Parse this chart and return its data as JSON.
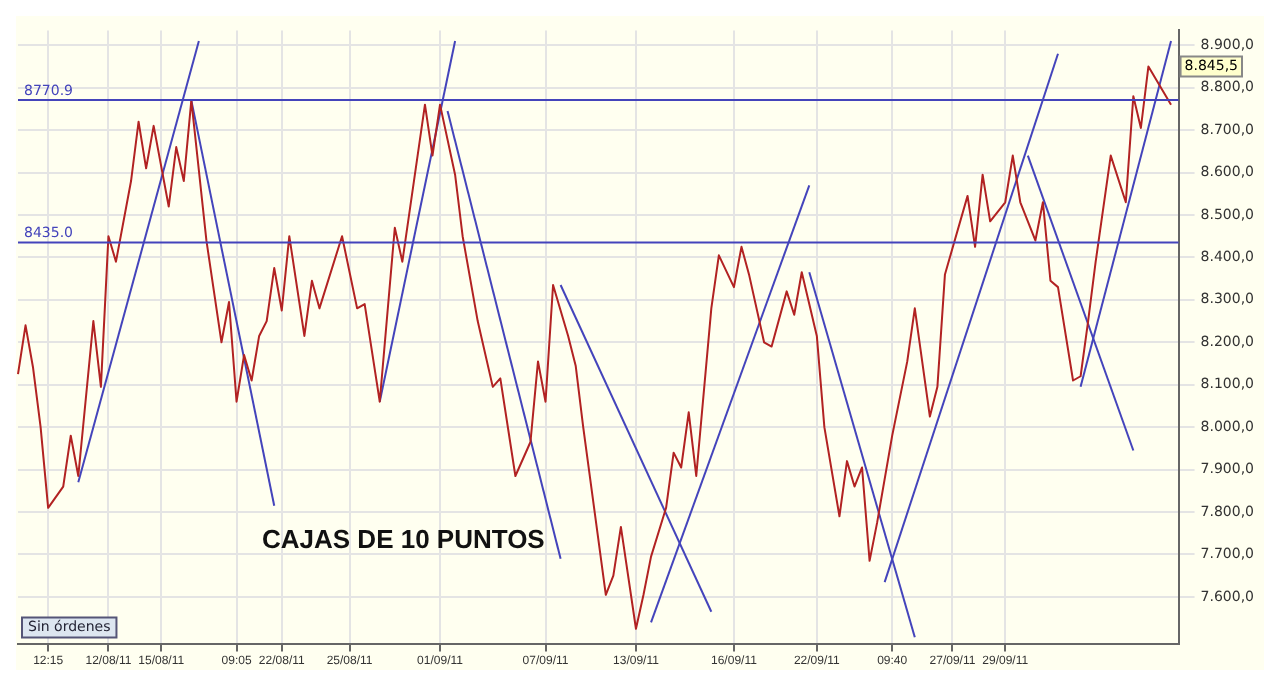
{
  "chart_data": {
    "type": "line",
    "annotations": [
      "CAJAS DE 10 PUNTOS",
      "Sin órdenes",
      "8.845,5"
    ],
    "categories": [
      null,
      null,
      null,
      null,
      "12:15",
      null,
      null,
      null,
      null,
      null,
      null,
      null,
      "12/08/11",
      null,
      null,
      null,
      null,
      null,
      null,
      "15/08/11",
      null,
      null,
      null,
      null,
      null,
      null,
      null,
      null,
      null,
      "09:05",
      null,
      null,
      null,
      null,
      null,
      "22/08/11",
      null,
      null,
      null,
      null,
      null,
      null,
      null,
      null,
      "25/08/11",
      null,
      null,
      null,
      null,
      null,
      null,
      null,
      null,
      null,
      null,
      null,
      "01/09/11",
      null,
      null,
      null,
      null,
      null,
      null,
      null,
      null,
      null,
      null,
      null,
      null,
      null,
      "07/09/11",
      null,
      null,
      null,
      null,
      null,
      null,
      null,
      null,
      null,
      null,
      null,
      "13/09/11",
      null,
      null,
      null,
      null,
      null,
      null,
      null,
      null,
      null,
      null,
      null,
      null,
      "16/09/11",
      null,
      null,
      null,
      null,
      null,
      null,
      null,
      null,
      null,
      null,
      "22/09/11",
      null,
      null,
      null,
      null,
      null,
      null,
      null,
      null,
      null,
      "09:40",
      null,
      null,
      null,
      null,
      null,
      null,
      null,
      "27/09/11",
      null,
      null,
      null,
      null,
      null,
      null,
      "29/09/11",
      null,
      null,
      null,
      null,
      null,
      null,
      null,
      null,
      null,
      null,
      null,
      null,
      null,
      null,
      null,
      null,
      null,
      null,
      null,
      null,
      null,
      null,
      null
    ],
    "ylim": [
      7490,
      8935
    ],
    "yticks": [
      {
        "value": 7600,
        "label": "7.600,0"
      },
      {
        "value": 7700,
        "label": "7.700,0"
      },
      {
        "value": 7800,
        "label": "7.800,0"
      },
      {
        "value": 7900,
        "label": "7.900,0"
      },
      {
        "value": 8000,
        "label": "8.000,0"
      },
      {
        "value": 8100,
        "label": "8.100,0"
      },
      {
        "value": 8200,
        "label": "8.200,0"
      },
      {
        "value": 8300,
        "label": "8.300,0"
      },
      {
        "value": 8400,
        "label": "8.400,0"
      },
      {
        "value": 8500,
        "label": "8.500,0"
      },
      {
        "value": 8600,
        "label": "8.600,0"
      },
      {
        "value": 8700,
        "label": "8.700,0"
      },
      {
        "value": 8800,
        "label": "8.800,0"
      },
      {
        "value": 8900,
        "label": "8.900,0"
      }
    ],
    "grid": true,
    "legend": false,
    "marker": "none",
    "line_style": "solid",
    "ref_lines": [
      {
        "axis": "y",
        "value": 8770.9,
        "label": "8770.9",
        "color": "#4444bb"
      },
      {
        "axis": "y",
        "value": 8435.0,
        "label": "8435.0",
        "color": "#4444bb"
      }
    ],
    "series": [
      {
        "color": "#b22222",
        "values": [
          8125,
          8240,
          8140,
          8000,
          7810,
          null,
          7860,
          7980,
          7885,
          null,
          8250,
          8095,
          8450,
          8390,
          null,
          8580,
          8720,
          8610,
          8710,
          null,
          8520,
          8660,
          8580,
          8770,
          null,
          8440,
          null,
          8200,
          8295,
          8060,
          8170,
          8110,
          8215,
          8250,
          8375,
          8275,
          8450,
          null,
          8215,
          8345,
          8280,
          null,
          null,
          8450,
          null,
          8280,
          8290,
          null,
          8060,
          null,
          8470,
          8390,
          null,
          null,
          8760,
          8640,
          8760,
          null,
          8595,
          8450,
          null,
          8250,
          null,
          8095,
          8115,
          null,
          7885,
          null,
          7965,
          8155,
          8060,
          8335,
          null,
          8215,
          8145,
          8000,
          null,
          null,
          7605,
          7650,
          7765,
          null,
          7525,
          7605,
          7695,
          null,
          7810,
          7940,
          7905,
          8035,
          7885,
          null,
          8280,
          8405,
          null,
          8330,
          8425,
          8360,
          null,
          8200,
          8190,
          null,
          8320,
          8265,
          8365,
          null,
          8215,
          8000,
          null,
          7790,
          7920,
          7860,
          7905,
          7685,
          7775,
          null,
          7980,
          null,
          8155,
          8280,
          null,
          8025,
          8095,
          8360,
          null,
          null,
          8545,
          8425,
          8595,
          8485,
          null,
          8530,
          8640,
          8530,
          null,
          8440,
          8530,
          8345,
          8330,
          null,
          8110,
          8120,
          8250,
          8390,
          null,
          8640,
          null,
          8530,
          8780,
          8705,
          8850,
          null,
          null,
          8760,
          null
        ]
      },
      {
        "color": "#4444bb",
        "values": [
          null,
          null,
          null,
          null,
          null,
          null,
          null,
          null,
          7870,
          null,
          null,
          null,
          null,
          null,
          null,
          null,
          null,
          null,
          null,
          null,
          null,
          null,
          null,
          null,
          8910,
          null,
          null,
          null,
          null,
          null,
          null,
          null,
          null,
          null,
          null,
          null,
          null,
          null,
          null,
          null,
          null,
          null,
          null,
          null,
          null,
          null,
          null,
          null,
          null,
          null,
          null,
          null,
          null,
          null,
          null,
          null,
          null,
          null,
          null,
          null,
          null,
          null,
          null,
          null,
          null,
          null,
          null,
          null,
          null,
          null,
          null,
          null,
          null,
          null,
          null,
          null,
          null,
          null,
          null,
          null,
          null,
          null,
          null,
          null,
          null,
          null,
          null,
          null,
          null,
          null,
          null,
          null,
          null,
          null,
          null,
          null,
          null,
          null,
          null,
          null,
          null,
          null,
          null,
          null,
          null,
          null,
          null,
          null,
          null,
          null,
          null,
          null,
          null,
          null,
          null,
          null,
          null,
          null,
          null,
          null,
          null,
          null,
          null,
          null,
          null,
          null,
          null,
          null,
          null,
          null,
          null,
          null,
          null,
          null,
          null,
          null,
          null,
          null,
          null,
          null,
          null,
          null,
          null,
          null,
          null,
          null,
          null,
          null,
          null,
          null,
          null,
          null,
          null,
          null,
          null
        ]
      },
      {
        "color": "#4444bb",
        "values": [
          null,
          null,
          null,
          null,
          null,
          null,
          null,
          null,
          null,
          null,
          null,
          null,
          null,
          null,
          null,
          null,
          null,
          null,
          null,
          null,
          null,
          null,
          null,
          8770,
          null,
          null,
          null,
          null,
          null,
          null,
          null,
          null,
          null,
          null,
          7815,
          null,
          null,
          null,
          null,
          null,
          null,
          null,
          null,
          null,
          null,
          null,
          null,
          null,
          null,
          null,
          null,
          null,
          null,
          null,
          null,
          null,
          null,
          null,
          null,
          null,
          null,
          null,
          null,
          null,
          null,
          null,
          null,
          null,
          null,
          null,
          null,
          null,
          null,
          null,
          null,
          null,
          null,
          null,
          null,
          null,
          null,
          null,
          null,
          null,
          null,
          null,
          null,
          null,
          null,
          null,
          null,
          null,
          null,
          null,
          null,
          null,
          null,
          null,
          null,
          null,
          null,
          null,
          null,
          null,
          null,
          null,
          null,
          null,
          null,
          null,
          null,
          null,
          null,
          null,
          null,
          null,
          null,
          null,
          null,
          null,
          null,
          null,
          null,
          null,
          null,
          null,
          null,
          null,
          null,
          null,
          null,
          null,
          null,
          null,
          null,
          null,
          null,
          null,
          null,
          null,
          null,
          null,
          null,
          null,
          null,
          null,
          null,
          null,
          null,
          null,
          null,
          null,
          null,
          null,
          null
        ]
      },
      {
        "color": "#4444bb",
        "values": [
          null,
          null,
          null,
          null,
          null,
          null,
          null,
          null,
          null,
          null,
          null,
          null,
          null,
          null,
          null,
          null,
          null,
          null,
          null,
          null,
          null,
          null,
          null,
          null,
          null,
          null,
          null,
          null,
          null,
          null,
          null,
          null,
          null,
          null,
          null,
          null,
          null,
          null,
          null,
          null,
          null,
          null,
          null,
          null,
          null,
          null,
          null,
          null,
          8060,
          null,
          null,
          null,
          null,
          null,
          null,
          null,
          null,
          null,
          8910,
          null,
          null,
          null,
          null,
          null,
          null,
          null,
          null,
          null,
          null,
          null,
          null,
          null,
          null,
          null,
          null,
          null,
          null,
          null,
          null,
          null,
          null,
          null,
          null,
          null,
          null,
          null,
          null,
          null,
          null,
          null,
          null,
          null,
          null,
          null,
          null,
          null,
          null,
          null,
          null,
          null,
          null,
          null,
          null,
          null,
          null,
          null,
          null,
          null,
          null,
          null,
          null,
          null,
          null,
          null,
          null,
          null,
          null,
          null,
          null,
          null,
          null,
          null,
          null,
          null,
          null,
          null,
          null,
          null,
          null,
          null,
          null,
          null,
          null,
          null,
          null,
          null,
          null,
          null,
          null,
          null,
          null,
          null,
          null,
          null,
          null,
          null,
          null,
          null,
          null,
          null,
          null,
          null,
          null,
          null,
          null
        ]
      },
      {
        "color": "#4444bb",
        "values": [
          null,
          null,
          null,
          null,
          null,
          null,
          null,
          null,
          null,
          null,
          null,
          null,
          null,
          null,
          null,
          null,
          null,
          null,
          null,
          null,
          null,
          null,
          null,
          null,
          null,
          null,
          null,
          null,
          null,
          null,
          null,
          null,
          null,
          null,
          null,
          null,
          null,
          null,
          null,
          null,
          null,
          null,
          null,
          null,
          null,
          null,
          null,
          null,
          null,
          null,
          null,
          null,
          null,
          null,
          null,
          null,
          null,
          8745,
          null,
          null,
          null,
          null,
          null,
          null,
          null,
          null,
          null,
          null,
          null,
          null,
          null,
          null,
          7690,
          null,
          null,
          null,
          null,
          null,
          null,
          null,
          null,
          null,
          null,
          null,
          null,
          null,
          null,
          null,
          null,
          null,
          null,
          null,
          null,
          null,
          null,
          null,
          null,
          null,
          null,
          null,
          null,
          null,
          null,
          null,
          null,
          null,
          null,
          null,
          null,
          null,
          null,
          null,
          null,
          null,
          null,
          null,
          null,
          null,
          null,
          null,
          null,
          null,
          null,
          null,
          null,
          null,
          null,
          null,
          null,
          null,
          null,
          null,
          null,
          null,
          null,
          null,
          null,
          null,
          null,
          null,
          null,
          null,
          null,
          null,
          null,
          null,
          null,
          null,
          null,
          null,
          null,
          null,
          null,
          null,
          null
        ]
      },
      {
        "color": "#4444bb",
        "values": [
          null,
          null,
          null,
          null,
          null,
          null,
          null,
          null,
          null,
          null,
          null,
          null,
          null,
          null,
          null,
          null,
          null,
          null,
          null,
          null,
          null,
          null,
          null,
          null,
          null,
          null,
          null,
          null,
          null,
          null,
          null,
          null,
          null,
          null,
          null,
          null,
          null,
          null,
          null,
          null,
          null,
          null,
          null,
          null,
          null,
          null,
          null,
          null,
          null,
          null,
          null,
          null,
          null,
          null,
          null,
          null,
          null,
          null,
          null,
          null,
          null,
          null,
          null,
          null,
          null,
          null,
          null,
          null,
          null,
          null,
          null,
          null,
          8335,
          null,
          null,
          null,
          null,
          null,
          null,
          null,
          null,
          null,
          null,
          null,
          null,
          null,
          null,
          null,
          null,
          null,
          null,
          null,
          7565,
          null,
          null,
          null,
          null,
          null,
          null,
          null,
          null,
          null,
          null,
          null,
          null,
          null,
          null,
          null,
          null,
          null,
          null,
          null,
          null,
          null,
          null,
          null,
          null,
          null,
          null,
          null,
          null,
          null,
          null,
          null,
          null,
          null,
          null,
          null,
          null,
          null,
          null,
          null,
          null,
          null,
          null,
          null,
          null,
          null,
          null,
          null,
          null,
          null,
          null,
          null,
          null,
          null,
          null,
          null,
          null,
          null,
          null,
          null,
          null,
          null,
          null
        ]
      },
      {
        "color": "#4444bb",
        "values": [
          null,
          null,
          null,
          null,
          null,
          null,
          null,
          null,
          null,
          null,
          null,
          null,
          null,
          null,
          null,
          null,
          null,
          null,
          null,
          null,
          null,
          null,
          null,
          null,
          null,
          null,
          null,
          null,
          null,
          null,
          null,
          null,
          null,
          null,
          null,
          null,
          null,
          null,
          null,
          null,
          null,
          null,
          null,
          null,
          null,
          null,
          null,
          null,
          null,
          null,
          null,
          null,
          null,
          null,
          null,
          null,
          null,
          null,
          null,
          null,
          null,
          null,
          null,
          null,
          null,
          null,
          null,
          null,
          null,
          null,
          null,
          null,
          null,
          null,
          null,
          null,
          null,
          null,
          null,
          null,
          null,
          null,
          null,
          null,
          7540,
          null,
          null,
          null,
          null,
          null,
          null,
          null,
          null,
          null,
          null,
          null,
          null,
          null,
          null,
          null,
          null,
          null,
          null,
          null,
          null,
          8570,
          null,
          null,
          null,
          null,
          null,
          null,
          null,
          null,
          null,
          null,
          null,
          null,
          null,
          null,
          null,
          null,
          null,
          null,
          null,
          null,
          null,
          null,
          null,
          null,
          null,
          null,
          null,
          null,
          null,
          null,
          null,
          null,
          null,
          null,
          null,
          null,
          null,
          null,
          null,
          null,
          null,
          null,
          null,
          null,
          null,
          null,
          null,
          null,
          null
        ]
      },
      {
        "color": "#4444bb",
        "values": [
          null,
          null,
          null,
          null,
          null,
          null,
          null,
          null,
          null,
          null,
          null,
          null,
          null,
          null,
          null,
          null,
          null,
          null,
          null,
          null,
          null,
          null,
          null,
          null,
          null,
          null,
          null,
          null,
          null,
          null,
          null,
          null,
          null,
          null,
          null,
          null,
          null,
          null,
          null,
          null,
          null,
          null,
          null,
          null,
          null,
          null,
          null,
          null,
          null,
          null,
          null,
          null,
          null,
          null,
          null,
          null,
          null,
          null,
          null,
          null,
          null,
          null,
          null,
          null,
          null,
          null,
          null,
          null,
          null,
          null,
          null,
          null,
          null,
          null,
          null,
          null,
          null,
          null,
          null,
          null,
          null,
          null,
          null,
          null,
          null,
          null,
          null,
          null,
          null,
          null,
          null,
          null,
          null,
          null,
          null,
          null,
          null,
          null,
          null,
          null,
          null,
          null,
          null,
          null,
          null,
          8365,
          null,
          null,
          null,
          null,
          null,
          null,
          null,
          null,
          null,
          null,
          null,
          null,
          null,
          7505,
          null,
          null,
          null,
          null,
          null,
          null,
          null,
          null,
          null,
          null,
          null,
          null,
          null,
          null,
          null,
          null,
          null,
          null,
          null,
          null,
          null,
          null,
          null,
          null,
          null,
          null,
          null,
          null,
          null,
          null,
          null,
          null,
          null,
          null,
          null
        ]
      },
      {
        "color": "#4444bb",
        "values": [
          null,
          null,
          null,
          null,
          null,
          null,
          null,
          null,
          null,
          null,
          null,
          null,
          null,
          null,
          null,
          null,
          null,
          null,
          null,
          null,
          null,
          null,
          null,
          null,
          null,
          null,
          null,
          null,
          null,
          null,
          null,
          null,
          null,
          null,
          null,
          null,
          null,
          null,
          null,
          null,
          null,
          null,
          null,
          null,
          null,
          null,
          null,
          null,
          null,
          null,
          null,
          null,
          null,
          null,
          null,
          null,
          null,
          null,
          null,
          null,
          null,
          null,
          null,
          null,
          null,
          null,
          null,
          null,
          null,
          null,
          null,
          null,
          null,
          null,
          null,
          null,
          null,
          null,
          null,
          null,
          null,
          null,
          null,
          null,
          null,
          null,
          null,
          null,
          null,
          null,
          null,
          null,
          null,
          null,
          null,
          null,
          null,
          null,
          null,
          null,
          null,
          null,
          null,
          null,
          null,
          null,
          null,
          null,
          null,
          null,
          null,
          null,
          null,
          null,
          null,
          7635,
          null,
          null,
          null,
          null,
          null,
          null,
          null,
          null,
          null,
          null,
          null,
          null,
          null,
          null,
          null,
          null,
          null,
          null,
          null,
          null,
          null,
          null,
          8880,
          null,
          null,
          null,
          null,
          null,
          null,
          null,
          null,
          null,
          null,
          null,
          null,
          null,
          null,
          null,
          null
        ]
      },
      {
        "color": "#4444bb",
        "values": [
          null,
          null,
          null,
          null,
          null,
          null,
          null,
          null,
          null,
          null,
          null,
          null,
          null,
          null,
          null,
          null,
          null,
          null,
          null,
          null,
          null,
          null,
          null,
          null,
          null,
          null,
          null,
          null,
          null,
          null,
          null,
          null,
          null,
          null,
          null,
          null,
          null,
          null,
          null,
          null,
          null,
          null,
          null,
          null,
          null,
          null,
          null,
          null,
          null,
          null,
          null,
          null,
          null,
          null,
          null,
          null,
          null,
          null,
          null,
          null,
          null,
          null,
          null,
          null,
          null,
          null,
          null,
          null,
          null,
          null,
          null,
          null,
          null,
          null,
          null,
          null,
          null,
          null,
          null,
          null,
          null,
          null,
          null,
          null,
          null,
          null,
          null,
          null,
          null,
          null,
          null,
          null,
          null,
          null,
          null,
          null,
          null,
          null,
          null,
          null,
          null,
          null,
          null,
          null,
          null,
          null,
          null,
          null,
          null,
          null,
          null,
          null,
          null,
          null,
          null,
          null,
          null,
          null,
          null,
          null,
          null,
          null,
          null,
          null,
          null,
          null,
          null,
          null,
          null,
          null,
          null,
          null,
          null,
          null,
          8640,
          null,
          null,
          null,
          null,
          null,
          null,
          null,
          null,
          null,
          null,
          null,
          null,
          null,
          7945,
          null,
          null,
          null,
          null,
          null,
          null
        ]
      },
      {
        "color": "#4444bb",
        "values": [
          null,
          null,
          null,
          null,
          null,
          null,
          null,
          null,
          null,
          null,
          null,
          null,
          null,
          null,
          null,
          null,
          null,
          null,
          null,
          null,
          null,
          null,
          null,
          null,
          null,
          null,
          null,
          null,
          null,
          null,
          null,
          null,
          null,
          null,
          null,
          null,
          null,
          null,
          null,
          null,
          null,
          null,
          null,
          null,
          null,
          null,
          null,
          null,
          null,
          null,
          null,
          null,
          null,
          null,
          null,
          null,
          null,
          null,
          null,
          null,
          null,
          null,
          null,
          null,
          null,
          null,
          null,
          null,
          null,
          null,
          null,
          null,
          null,
          null,
          null,
          null,
          null,
          null,
          null,
          null,
          null,
          null,
          null,
          null,
          null,
          null,
          null,
          null,
          null,
          null,
          null,
          null,
          null,
          null,
          null,
          null,
          null,
          null,
          null,
          null,
          null,
          null,
          null,
          null,
          null,
          null,
          null,
          null,
          null,
          null,
          null,
          null,
          null,
          null,
          null,
          null,
          null,
          null,
          null,
          null,
          null,
          null,
          null,
          null,
          null,
          null,
          null,
          null,
          null,
          null,
          null,
          null,
          null,
          null,
          null,
          null,
          null,
          null,
          null,
          null,
          null,
          8095,
          null,
          null,
          null,
          null,
          null,
          null,
          null,
          null,
          null,
          null,
          null,
          8910,
          null
        ]
      }
    ]
  }
}
